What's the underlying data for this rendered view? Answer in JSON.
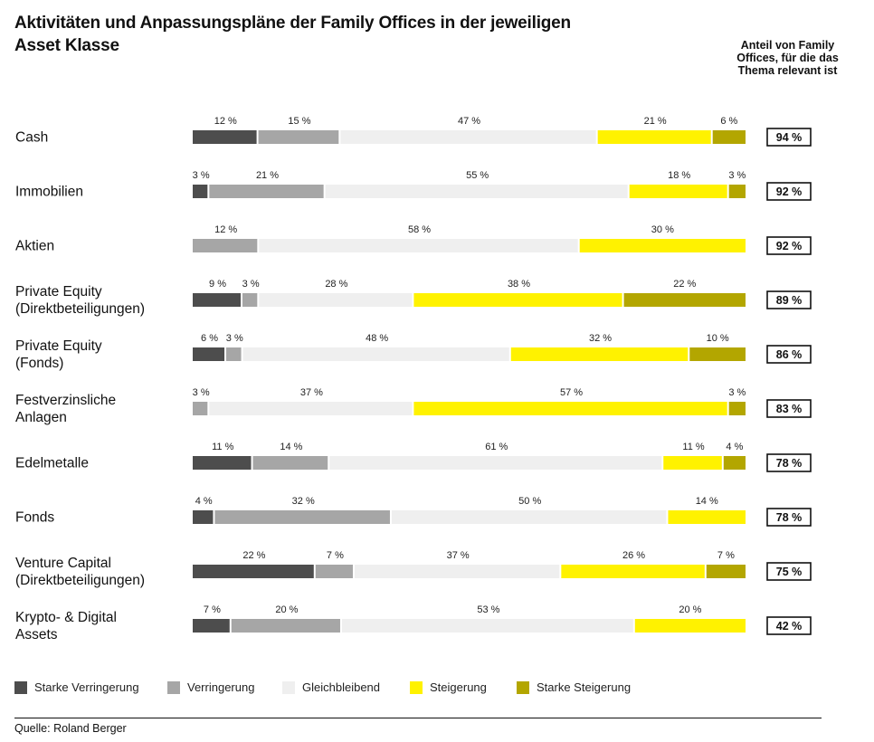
{
  "title": "Aktivitäten und Anpassungspläne der Family Offices in der jeweiligen Asset Klasse",
  "share_header": "Anteil von Family Offices, für die das Thema relevant ist",
  "source": "Quelle: Roland Berger",
  "colors": {
    "Starke Verringerung": "#4d4d4d",
    "Verringerung": "#a6a6a6",
    "Gleichbleibend": "#efefef",
    "Steigerung": "#fff200",
    "Starke Steigerung": "#b3a600"
  },
  "chart_data": {
    "type": "bar",
    "orientation": "horizontal",
    "stacked": true,
    "unit": "%",
    "categories": [
      "Cash",
      "Immobilien",
      "Aktien",
      "Private Equity (Direktbeteiligungen)",
      "Private Equity (Fonds)",
      "Festverzinsliche Anlagen",
      "Edelmetalle",
      "Fonds",
      "Venture Capital (Direktbeteiligungen)",
      "Krypto- & Digital Assets"
    ],
    "category_lines": [
      [
        "Cash"
      ],
      [
        "Immobilien"
      ],
      [
        "Aktien"
      ],
      [
        "Private Equity",
        "(Direktbeteiligungen)"
      ],
      [
        "Private Equity",
        "(Fonds)"
      ],
      [
        "Festverzinsliche",
        "Anlagen"
      ],
      [
        "Edelmetalle"
      ],
      [
        "Fonds"
      ],
      [
        "Venture Capital",
        "(Direktbeteiligungen)"
      ],
      [
        "Krypto- & Digital",
        "Assets"
      ]
    ],
    "series": [
      {
        "name": "Starke Verringerung",
        "values": [
          12,
          3,
          0,
          9,
          6,
          0,
          11,
          4,
          22,
          7
        ]
      },
      {
        "name": "Verringerung",
        "values": [
          15,
          21,
          12,
          3,
          3,
          3,
          14,
          32,
          7,
          20
        ]
      },
      {
        "name": "Gleichbleibend",
        "values": [
          47,
          55,
          58,
          28,
          48,
          37,
          61,
          50,
          37,
          53
        ]
      },
      {
        "name": "Steigerung",
        "values": [
          21,
          18,
          30,
          38,
          32,
          57,
          11,
          14,
          26,
          20
        ]
      },
      {
        "name": "Starke Steigerung",
        "values": [
          6,
          3,
          0,
          22,
          10,
          3,
          4,
          0,
          7,
          0
        ]
      }
    ],
    "share_values": [
      94,
      92,
      92,
      89,
      86,
      83,
      78,
      78,
      75,
      42
    ],
    "legend": {
      "placement": "bottom",
      "items": [
        "Starke Verringerung",
        "Verringerung",
        "Gleichbleibend",
        "Steigerung",
        "Starke Steigerung"
      ]
    },
    "grid": false
  }
}
